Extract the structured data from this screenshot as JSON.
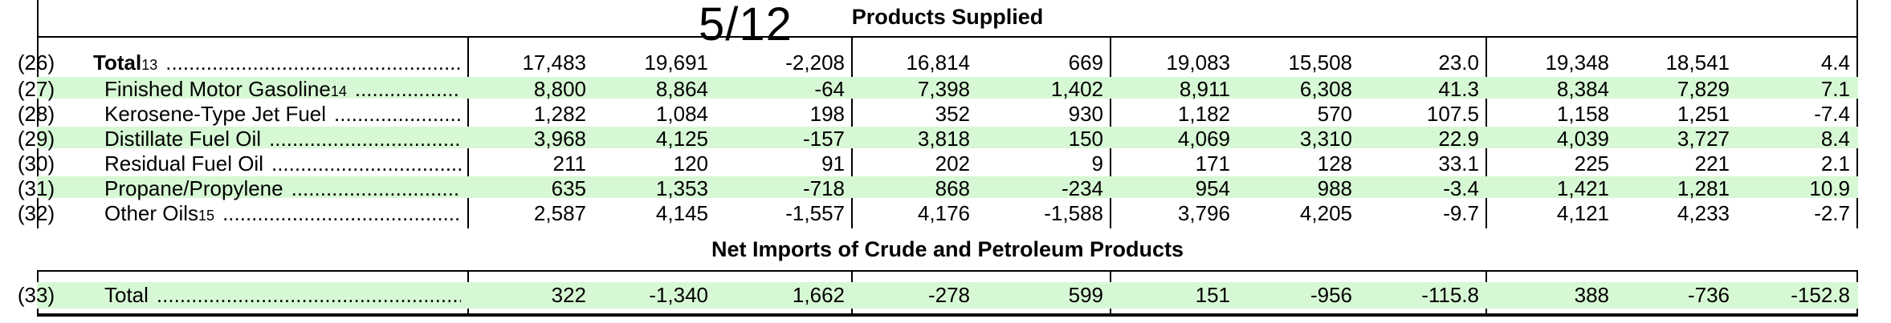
{
  "page_marker": "5/12",
  "sections": {
    "supplied_title": "Products Supplied",
    "net_imports_title": "Net Imports of Crude and Petroleum Products"
  },
  "rows": [
    {
      "num": "(26)",
      "label": "Total",
      "sup": "13",
      "bold": true,
      "values": [
        "17,483",
        "19,691",
        "-2,208",
        "16,814",
        "669",
        "19,083",
        "15,508",
        "23.0",
        "19,348",
        "18,541",
        "4.4"
      ]
    },
    {
      "num": "(27)",
      "label": "Finished Motor Gasoline",
      "sup": "14",
      "bold": false,
      "values": [
        "8,800",
        "8,864",
        "-64",
        "7,398",
        "1,402",
        "8,911",
        "6,308",
        "41.3",
        "8,384",
        "7,829",
        "7.1"
      ]
    },
    {
      "num": "(28)",
      "label": "Kerosene-Type Jet Fuel",
      "sup": "",
      "bold": false,
      "values": [
        "1,282",
        "1,084",
        "198",
        "352",
        "930",
        "1,182",
        "570",
        "107.5",
        "1,158",
        "1,251",
        "-7.4"
      ]
    },
    {
      "num": "(29)",
      "label": "Distillate Fuel Oil",
      "sup": "",
      "bold": false,
      "values": [
        "3,968",
        "4,125",
        "-157",
        "3,818",
        "150",
        "4,069",
        "3,310",
        "22.9",
        "4,039",
        "3,727",
        "8.4"
      ]
    },
    {
      "num": "(30)",
      "label": "Residual Fuel Oil",
      "sup": "",
      "bold": false,
      "values": [
        "211",
        "120",
        "91",
        "202",
        "9",
        "171",
        "128",
        "33.1",
        "225",
        "221",
        "2.1"
      ]
    },
    {
      "num": "(31)",
      "label": "Propane/Propylene",
      "sup": "",
      "bold": false,
      "values": [
        "635",
        "1,353",
        "-718",
        "868",
        "-234",
        "954",
        "988",
        "-3.4",
        "1,421",
        "1,281",
        "10.9"
      ]
    },
    {
      "num": "(32)",
      "label": "Other Oils",
      "sup": "15",
      "bold": false,
      "values": [
        "2,587",
        "4,145",
        "-1,557",
        "4,176",
        "-1,588",
        "3,796",
        "4,205",
        "-9.7",
        "4,121",
        "4,233",
        "-2.7"
      ]
    },
    {
      "num": "(33)",
      "label": "Total",
      "sup": "",
      "bold": false,
      "values": [
        "322",
        "-1,340",
        "1,662",
        "-278",
        "599",
        "151",
        "-956",
        "-115.8",
        "388",
        "-736",
        "-152.8"
      ]
    }
  ]
}
